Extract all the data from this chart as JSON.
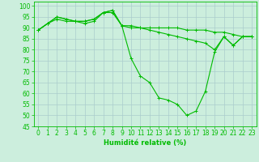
{
  "xlabel": "Humidité relative (%)",
  "background_color": "#cceedd",
  "grid_color": "#aacccc",
  "line_color": "#00bb00",
  "ylim": [
    45,
    102
  ],
  "xlim": [
    -0.5,
    23.5
  ],
  "yticks": [
    45,
    50,
    55,
    60,
    65,
    70,
    75,
    80,
    85,
    90,
    95,
    100
  ],
  "xticks": [
    0,
    1,
    2,
    3,
    4,
    5,
    6,
    7,
    8,
    9,
    10,
    11,
    12,
    13,
    14,
    15,
    16,
    17,
    18,
    19,
    20,
    21,
    22,
    23
  ],
  "series": [
    [
      89,
      92,
      94,
      93,
      93,
      92,
      93,
      97,
      97,
      91,
      91,
      90,
      90,
      90,
      90,
      90,
      89,
      89,
      89,
      88,
      88,
      87,
      86,
      86
    ],
    [
      89,
      92,
      95,
      94,
      93,
      93,
      94,
      97,
      98,
      91,
      76,
      68,
      65,
      58,
      57,
      55,
      50,
      52,
      61,
      79,
      86,
      82,
      86,
      86
    ],
    [
      89,
      92,
      95,
      94,
      93,
      93,
      94,
      97,
      98,
      91,
      90,
      90,
      89,
      88,
      87,
      86,
      85,
      84,
      83,
      80,
      86,
      82,
      86,
      86
    ]
  ]
}
